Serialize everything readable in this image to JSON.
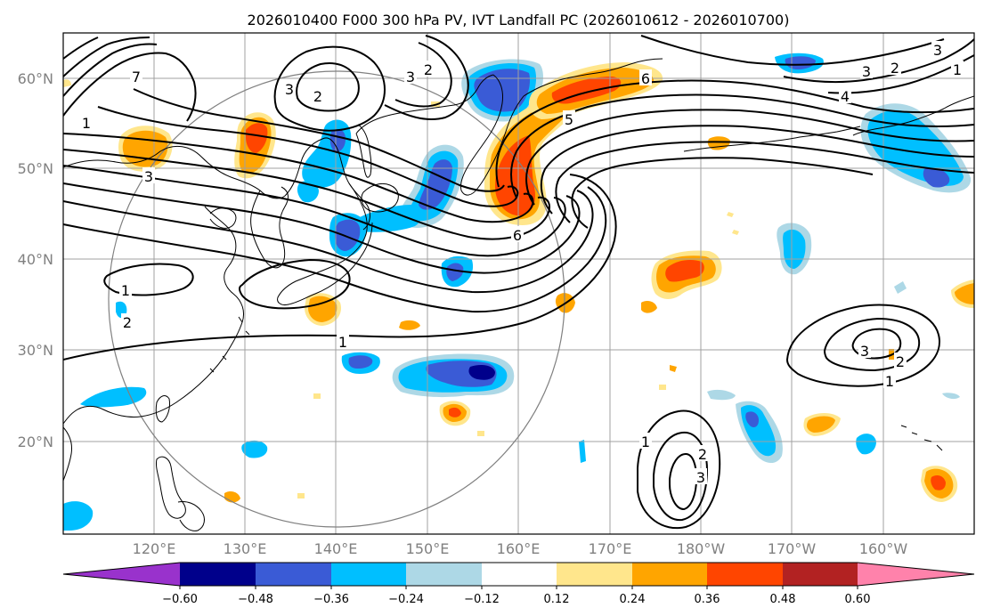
{
  "title": "2026010400 F000 300 hPa PV, IVT Landfall PC (2026010612 - 2026010700)",
  "axes": {
    "lat_ticks": [
      "60°N",
      "50°N",
      "40°N",
      "30°N",
      "20°N"
    ],
    "lon_ticks": [
      "120°E",
      "130°E",
      "140°E",
      "150°E",
      "160°E",
      "170°E",
      "180°W",
      "170°W",
      "160°W"
    ]
  },
  "colorbar": {
    "labels": [
      "−0.60",
      "−0.48",
      "−0.36",
      "−0.24",
      "−0.12",
      "0.12",
      "0.24",
      "0.36",
      "0.48",
      "0.60"
    ],
    "colors": [
      "#9932cc",
      "#00008b",
      "#3a5bd6",
      "#00bfff",
      "#add8e6",
      "#ffffff",
      "#ffe68c",
      "#ffa500",
      "#ff4500",
      "#b22222",
      "#ff82ab"
    ]
  },
  "pv_contour_labels": [
    "1",
    "1",
    "1",
    "1",
    "2",
    "2",
    "2",
    "2",
    "2",
    "3",
    "3",
    "3",
    "3",
    "3",
    "3",
    "4",
    "5",
    "6",
    "6",
    "7",
    "1",
    "2",
    "3",
    "1"
  ],
  "map_extent": {
    "lon": [
      110,
      210
    ],
    "lat": [
      10,
      65
    ]
  },
  "colors": {
    "negative": [
      "#add8e6",
      "#00bfff",
      "#3a5bd6",
      "#00008b"
    ],
    "positive": [
      "#ffe68c",
      "#ffa500",
      "#ff4500"
    ],
    "pv_contour": "#000000",
    "range_ring": "#808080",
    "gridline": "#a0a0a0",
    "tick_label": "#808080"
  }
}
